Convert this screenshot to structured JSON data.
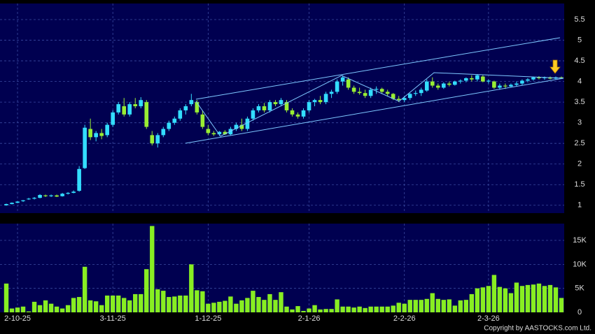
{
  "chart_data": [
    {
      "type": "candlestick",
      "up_color": "#33ddff",
      "down_color": "#99ee33",
      "grid": true,
      "xlim": [
        -0.5,
        99.5
      ],
      "ylim": [
        0.81,
        5.89
      ],
      "yticks": [
        1,
        1.5,
        2,
        2.5,
        3,
        3.5,
        4,
        4.5,
        5,
        5.5
      ],
      "ohlc": [
        [
          1.0,
          1.04,
          0.99,
          1.03
        ],
        [
          1.03,
          1.07,
          1.02,
          1.06
        ],
        [
          1.06,
          1.1,
          1.05,
          1.09
        ],
        [
          1.1,
          1.13,
          1.08,
          1.12
        ],
        [
          1.15,
          1.18,
          1.13,
          1.16
        ],
        [
          1.16,
          1.2,
          1.14,
          1.18
        ],
        [
          1.18,
          1.27,
          1.17,
          1.25
        ],
        [
          1.24,
          1.26,
          1.2,
          1.22
        ],
        [
          1.22,
          1.26,
          1.2,
          1.24
        ],
        [
          1.24,
          1.26,
          1.2,
          1.21
        ],
        [
          1.22,
          1.3,
          1.21,
          1.28
        ],
        [
          1.28,
          1.32,
          1.26,
          1.3
        ],
        [
          1.3,
          1.36,
          1.29,
          1.33
        ],
        [
          1.35,
          1.95,
          1.33,
          1.88
        ],
        [
          1.9,
          2.95,
          1.88,
          2.88
        ],
        [
          2.85,
          3.1,
          2.58,
          2.65
        ],
        [
          2.65,
          2.8,
          2.55,
          2.75
        ],
        [
          2.75,
          2.85,
          2.6,
          2.68
        ],
        [
          2.7,
          3.0,
          2.65,
          2.95
        ],
        [
          2.95,
          3.3,
          2.9,
          3.25
        ],
        [
          3.25,
          3.5,
          3.2,
          3.45
        ],
        [
          3.4,
          3.6,
          3.15,
          3.2
        ],
        [
          3.2,
          3.5,
          3.15,
          3.45
        ],
        [
          3.45,
          3.6,
          3.35,
          3.4
        ],
        [
          3.4,
          3.62,
          3.35,
          3.55
        ],
        [
          3.5,
          3.55,
          2.85,
          2.9
        ],
        [
          2.7,
          2.8,
          2.45,
          2.5
        ],
        [
          2.5,
          2.75,
          2.4,
          2.7
        ],
        [
          2.7,
          2.9,
          2.65,
          2.85
        ],
        [
          2.85,
          3.05,
          2.8,
          3.0
        ],
        [
          3.0,
          3.15,
          2.95,
          3.1
        ],
        [
          3.1,
          3.35,
          3.05,
          3.3
        ],
        [
          3.3,
          3.45,
          3.2,
          3.4
        ],
        [
          3.45,
          3.7,
          3.4,
          3.55
        ],
        [
          3.5,
          3.55,
          3.2,
          3.25
        ],
        [
          3.2,
          3.3,
          2.85,
          2.9
        ],
        [
          2.85,
          2.95,
          2.7,
          2.75
        ],
        [
          2.75,
          2.8,
          2.68,
          2.72
        ],
        [
          2.72,
          2.8,
          2.68,
          2.78
        ],
        [
          2.78,
          2.82,
          2.7,
          2.72
        ],
        [
          2.72,
          2.9,
          2.7,
          2.85
        ],
        [
          2.85,
          3.0,
          2.8,
          2.95
        ],
        [
          2.95,
          3.1,
          2.8,
          2.85
        ],
        [
          2.85,
          3.15,
          2.8,
          3.1
        ],
        [
          3.1,
          3.35,
          3.05,
          3.3
        ],
        [
          3.3,
          3.45,
          3.25,
          3.4
        ],
        [
          3.4,
          3.48,
          3.25,
          3.3
        ],
        [
          3.3,
          3.55,
          3.25,
          3.5
        ],
        [
          3.5,
          3.55,
          3.4,
          3.45
        ],
        [
          3.45,
          3.6,
          3.4,
          3.55
        ],
        [
          3.5,
          3.55,
          3.25,
          3.3
        ],
        [
          3.3,
          3.35,
          3.15,
          3.2
        ],
        [
          3.2,
          3.25,
          3.1,
          3.15
        ],
        [
          3.15,
          3.35,
          3.1,
          3.3
        ],
        [
          3.3,
          3.55,
          3.25,
          3.5
        ],
        [
          3.5,
          3.58,
          3.4,
          3.55
        ],
        [
          3.55,
          3.65,
          3.45,
          3.5
        ],
        [
          3.5,
          3.75,
          3.45,
          3.7
        ],
        [
          3.7,
          3.8,
          3.6,
          3.75
        ],
        [
          3.75,
          4.05,
          3.7,
          4.0
        ],
        [
          4.0,
          4.15,
          3.9,
          4.1
        ],
        [
          4.05,
          4.1,
          3.8,
          3.85
        ],
        [
          3.85,
          3.9,
          3.7,
          3.75
        ],
        [
          3.75,
          3.85,
          3.68,
          3.72
        ],
        [
          3.72,
          3.8,
          3.6,
          3.65
        ],
        [
          3.65,
          3.85,
          3.6,
          3.8
        ],
        [
          3.8,
          3.88,
          3.7,
          3.82
        ],
        [
          3.82,
          3.85,
          3.7,
          3.75
        ],
        [
          3.75,
          3.8,
          3.65,
          3.7
        ],
        [
          3.7,
          3.72,
          3.55,
          3.58
        ],
        [
          3.58,
          3.65,
          3.5,
          3.55
        ],
        [
          3.55,
          3.65,
          3.5,
          3.6
        ],
        [
          3.6,
          3.72,
          3.55,
          3.7
        ],
        [
          3.7,
          3.78,
          3.65,
          3.72
        ],
        [
          3.72,
          3.85,
          3.65,
          3.8
        ],
        [
          3.78,
          4.05,
          3.75,
          4.0
        ],
        [
          4.0,
          4.1,
          3.85,
          3.9
        ],
        [
          3.9,
          3.95,
          3.8,
          3.85
        ],
        [
          3.85,
          3.98,
          3.82,
          3.95
        ],
        [
          3.95,
          4.0,
          3.88,
          3.92
        ],
        [
          3.92,
          4.02,
          3.9,
          4.0
        ],
        [
          4.0,
          4.05,
          3.95,
          4.02
        ],
        [
          4.02,
          4.1,
          3.98,
          4.08
        ],
        [
          4.08,
          4.15,
          4.0,
          4.05
        ],
        [
          4.05,
          4.18,
          4.0,
          4.15
        ],
        [
          4.12,
          4.15,
          3.98,
          4.0
        ],
        [
          4.0,
          4.05,
          3.95,
          4.02
        ],
        [
          4.0,
          4.02,
          3.82,
          3.85
        ],
        [
          3.85,
          3.95,
          3.8,
          3.9
        ],
        [
          3.9,
          3.95,
          3.82,
          3.88
        ],
        [
          3.88,
          3.95,
          3.85,
          3.92
        ],
        [
          3.92,
          4.0,
          3.88,
          3.95
        ],
        [
          3.95,
          4.05,
          3.9,
          4.02
        ],
        [
          4.02,
          4.08,
          3.98,
          4.05
        ],
        [
          4.05,
          4.12,
          4.02,
          4.1
        ],
        [
          4.1,
          4.13,
          4.05,
          4.08
        ],
        [
          4.08,
          4.12,
          4.04,
          4.1
        ],
        [
          4.1,
          4.12,
          4.05,
          4.07
        ],
        [
          4.07,
          4.12,
          4.05,
          4.1
        ],
        [
          4.1,
          4.12,
          4.06,
          4.09
        ]
      ]
    },
    {
      "type": "bar",
      "color": "#88ee22",
      "grid": true,
      "xlim": [
        -0.5,
        99.5
      ],
      "ylim": [
        0,
        18500
      ],
      "yticks": [
        0,
        {
          "value": 5000,
          "label": "5K"
        },
        {
          "value": 10000,
          "label": "10K"
        },
        {
          "value": 15000,
          "label": "15K"
        }
      ],
      "xticks": [
        {
          "value": 2,
          "label": "2-10-25"
        },
        {
          "value": 19,
          "label": "3-11-25"
        },
        {
          "value": 36,
          "label": "1-12-25"
        },
        {
          "value": 54,
          "label": "2-1-26"
        },
        {
          "value": 71,
          "label": "2-2-26"
        },
        {
          "value": 86,
          "label": "2-3-26"
        }
      ],
      "values": [
        6000,
        800,
        1000,
        1200,
        200,
        2200,
        1500,
        2500,
        1800,
        1200,
        800,
        1500,
        3000,
        3200,
        9500,
        2500,
        2300,
        1500,
        3500,
        3500,
        3500,
        3000,
        2500,
        3800,
        3800,
        9000,
        18000,
        4800,
        4500,
        3200,
        3300,
        3500,
        3500,
        10000,
        4600,
        4400,
        1800,
        2000,
        2200,
        2400,
        3300,
        1800,
        2500,
        3000,
        4500,
        3200,
        2600,
        3800,
        2600,
        4200,
        1200,
        600,
        1300,
        300,
        800,
        1500,
        600,
        700,
        700,
        2700,
        1200,
        1200,
        1000,
        1200,
        900,
        1200,
        1200,
        1200,
        1200,
        1400,
        2000,
        1800,
        2600,
        2600,
        2600,
        2800,
        4000,
        2800,
        2600,
        2700,
        1400,
        2500,
        2600,
        3800,
        5000,
        5200,
        5500,
        7800,
        5300,
        5000,
        4000,
        6200,
        5500,
        5700,
        5800,
        6000,
        5500,
        5700,
        5200,
        3000
      ]
    }
  ],
  "copyright": "Copyright by AASTOCKS.com Ltd."
}
